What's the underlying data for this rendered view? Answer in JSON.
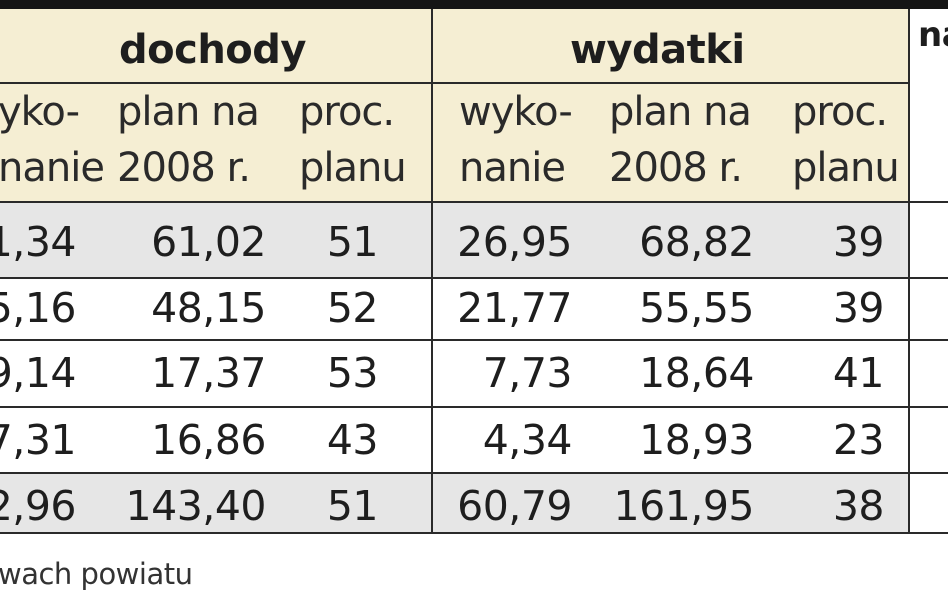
{
  "table": {
    "groups": {
      "dochody": "dochody",
      "wydatki": "wydatki",
      "third": "na"
    },
    "subheaders": {
      "wykonanie_1": "yko-",
      "wykonanie_2": "nanie",
      "plan_1": "plan na",
      "plan_2": "2008 r.",
      "proc_1": "proc.",
      "proc_2": "planu",
      "w_wykonanie_1": "wyko-",
      "w_wykonanie_2": "nanie",
      "w_plan_1": "plan na",
      "w_plan_2": "2008 r.",
      "w_proc_1": "proc.",
      "w_proc_2": "planu"
    },
    "rows": [
      {
        "d_wyk": "1,34",
        "d_plan": "61,02",
        "d_proc": "51",
        "w_wyk": "26,95",
        "w_plan": "68,82",
        "w_proc": "39"
      },
      {
        "d_wyk": "5,16",
        "d_plan": "48,15",
        "d_proc": "52",
        "w_wyk": "21,77",
        "w_plan": "55,55",
        "w_proc": "39"
      },
      {
        "d_wyk": "9,14",
        "d_plan": "17,37",
        "d_proc": "53",
        "w_wyk": "7,73",
        "w_plan": "18,64",
        "w_proc": "41"
      },
      {
        "d_wyk": "7,31",
        "d_plan": "16,86",
        "d_proc": "43",
        "w_wyk": "4,34",
        "w_plan": "18,93",
        "w_proc": "23"
      },
      {
        "d_wyk": "2,96",
        "d_plan": "143,40",
        "d_proc": "51",
        "w_wyk": "60,79",
        "w_plan": "161,95",
        "w_proc": "38"
      }
    ],
    "footnote": "wach powiatu",
    "colors": {
      "header_bg": "#f5eed3",
      "shaded_row_bg": "#e6e6e6",
      "rule": "#2a2a2a",
      "top_bar": "#151515"
    }
  }
}
